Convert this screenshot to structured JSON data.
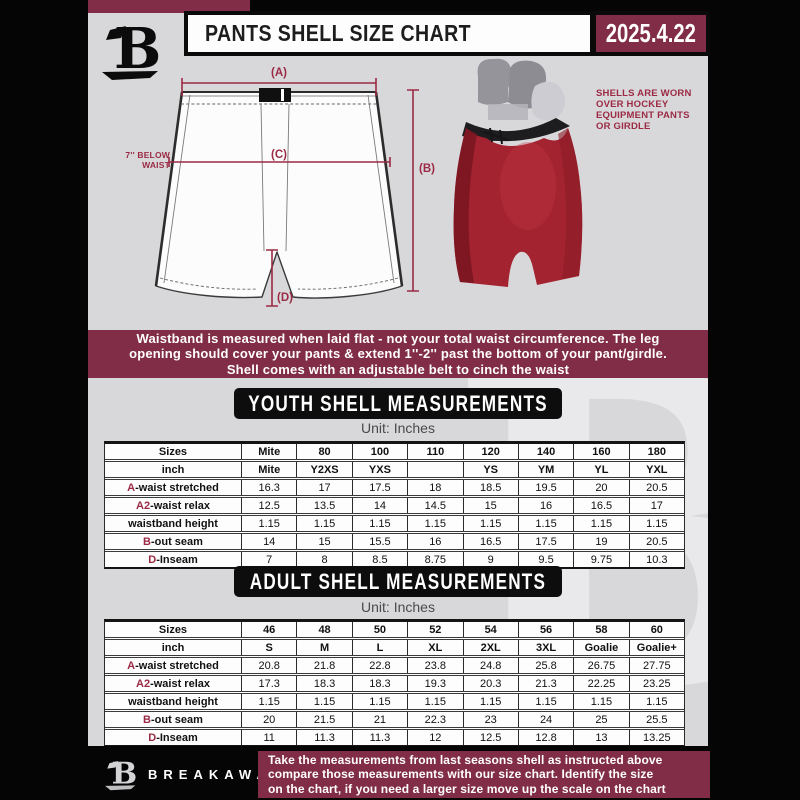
{
  "colors": {
    "maroon": "#812d47",
    "accent_maroon": "#9b2a44",
    "page_bg": "#d8d8da",
    "shell_red": "#a32330",
    "heading_black": "#0d0d0d"
  },
  "header": {
    "title": "PANTS SHELL SIZE CHART",
    "date": "2025.4.22",
    "logo_icon": "breakaway-b-logo"
  },
  "diagram": {
    "labels": {
      "a": "(A)",
      "b": "(B)",
      "c": "(C)",
      "d": "(D)"
    },
    "waist_note": [
      "7'' BELOW",
      "WAIST"
    ],
    "photo_note": [
      "SHELLS ARE WORN",
      "OVER HOCKEY",
      "EQUIPMENT PANTS",
      "OR GIRDLE"
    ]
  },
  "notice": {
    "lines": [
      "Waistband is measured when laid flat - not your total waist circumference. The leg",
      "opening should cover your pants & extend 1''-2'' past the bottom of your pant/girdle.",
      "Shell comes with an adjustable belt to cinch the waist"
    ]
  },
  "youth": {
    "heading": "YOUTH SHELL MEASUREMENTS",
    "unit": "Unit: Inches",
    "rows": [
      {
        "prefix": "",
        "label": "Sizes",
        "bold": true,
        "cells": [
          "Mite",
          "80",
          "100",
          "110",
          "120",
          "140",
          "160",
          "180"
        ]
      },
      {
        "prefix": "",
        "label": "inch",
        "bold": true,
        "cells": [
          "Mite",
          "Y2XS",
          "YXS",
          "",
          "YS",
          "YM",
          "YL",
          "YXL"
        ]
      },
      {
        "prefix": "A",
        "label": "-waist stretched",
        "bold": false,
        "cells": [
          "16.3",
          "17",
          "17.5",
          "18",
          "18.5",
          "19.5",
          "20",
          "20.5"
        ]
      },
      {
        "prefix": "A2",
        "label": "-waist relax",
        "bold": false,
        "cells": [
          "12.5",
          "13.5",
          "14",
          "14.5",
          "15",
          "16",
          "16.5",
          "17"
        ]
      },
      {
        "prefix": "",
        "label": "waistband height",
        "bold": false,
        "cells": [
          "1.15",
          "1.15",
          "1.15",
          "1.15",
          "1.15",
          "1.15",
          "1.15",
          "1.15"
        ]
      },
      {
        "prefix": "B",
        "label": "-out seam",
        "bold": false,
        "cells": [
          "14",
          "15",
          "15.5",
          "16",
          "16.5",
          "17.5",
          "19",
          "20.5"
        ]
      },
      {
        "prefix": "D",
        "label": "-Inseam",
        "bold": false,
        "cells": [
          "7",
          "8",
          "8.5",
          "8.75",
          "9",
          "9.5",
          "9.75",
          "10.3"
        ]
      }
    ]
  },
  "adult": {
    "heading": "ADULT SHELL MEASUREMENTS",
    "unit": "Unit: Inches",
    "rows": [
      {
        "prefix": "",
        "label": "Sizes",
        "bold": true,
        "cells": [
          "46",
          "48",
          "50",
          "52",
          "54",
          "56",
          "58",
          "60"
        ]
      },
      {
        "prefix": "",
        "label": "inch",
        "bold": true,
        "cells": [
          "S",
          "M",
          "L",
          "XL",
          "2XL",
          "3XL",
          "Goalie",
          "Goalie+"
        ]
      },
      {
        "prefix": "A",
        "label": "-waist stretched",
        "bold": false,
        "cells": [
          "20.8",
          "21.8",
          "22.8",
          "23.8",
          "24.8",
          "25.8",
          "26.75",
          "27.75"
        ]
      },
      {
        "prefix": "A2",
        "label": "-waist relax",
        "bold": false,
        "cells": [
          "17.3",
          "18.3",
          "18.3",
          "19.3",
          "20.3",
          "21.3",
          "22.25",
          "23.25"
        ]
      },
      {
        "prefix": "",
        "label": "waistband height",
        "bold": false,
        "cells": [
          "1.15",
          "1.15",
          "1.15",
          "1.15",
          "1.15",
          "1.15",
          "1.15",
          "1.15"
        ]
      },
      {
        "prefix": "B",
        "label": "-out seam",
        "bold": false,
        "cells": [
          "20",
          "21.5",
          "21",
          "22.3",
          "23",
          "24",
          "25",
          "25.5"
        ]
      },
      {
        "prefix": "D",
        "label": "-Inseam",
        "bold": false,
        "cells": [
          "11",
          "11.3",
          "11.3",
          "12",
          "12.5",
          "12.8",
          "13",
          "13.25"
        ]
      }
    ]
  },
  "footer": {
    "brand": "BREAKAWAY",
    "logo_icon": "breakaway-b-logo",
    "lines": [
      "Take the measurements from last seasons shell as instructed above",
      "compare those measurements  with our size chart. Identify the size",
      "on the chart, if you need a larger size move up the scale on the chart"
    ]
  }
}
